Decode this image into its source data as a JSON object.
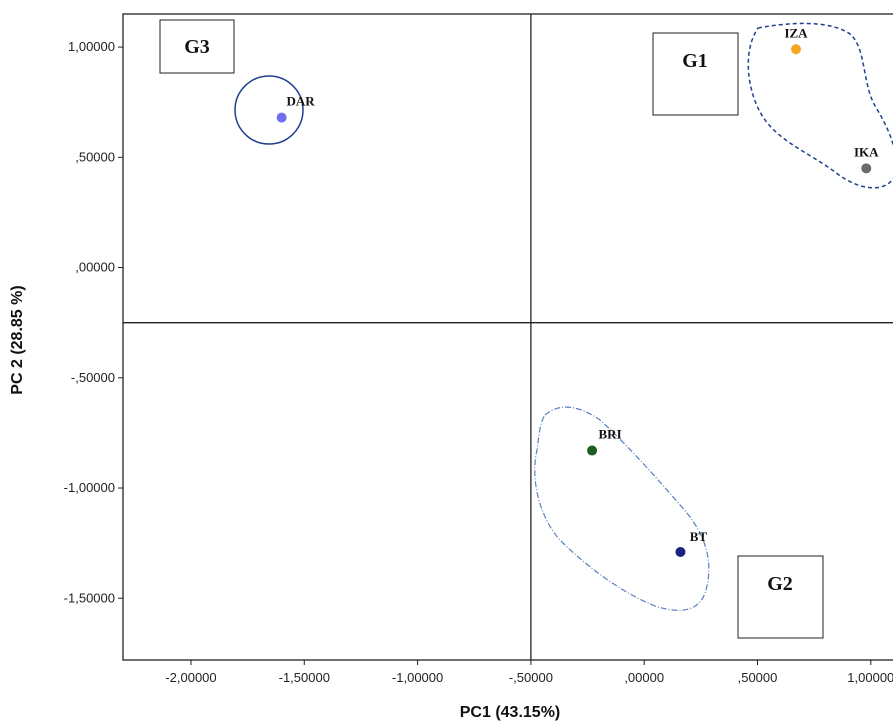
{
  "chart_data": {
    "type": "scatter",
    "xlabel": "PC1 (43.15%)",
    "ylabel": "PC 2 (28.85 %)",
    "xlim": [
      -2.3,
      1.12
    ],
    "ylim": [
      -1.78,
      1.15
    ],
    "x_ticks": [
      {
        "value": -2.0,
        "label": "-2,00000"
      },
      {
        "value": -1.5,
        "label": "-1,50000"
      },
      {
        "value": -1.0,
        "label": "-1,00000"
      },
      {
        "value": -0.5,
        "label": "-,50000"
      },
      {
        "value": 0.0,
        "label": ",00000"
      },
      {
        "value": 0.5,
        "label": ",50000"
      },
      {
        "value": 1.0,
        "label": "1,00000"
      }
    ],
    "y_ticks": [
      {
        "value": 1.0,
        "label": "1,00000"
      },
      {
        "value": 0.5,
        "label": ",50000"
      },
      {
        "value": 0.0,
        "label": ",00000"
      },
      {
        "value": -0.5,
        "label": "-,50000"
      },
      {
        "value": -1.0,
        "label": "-1,00000"
      },
      {
        "value": -1.5,
        "label": "-1,50000"
      }
    ],
    "reference_lines": {
      "x": -0.5,
      "y": -0.25
    },
    "points": [
      {
        "label": "IZA",
        "x": 0.67,
        "y": 0.99,
        "color": "#f5a623"
      },
      {
        "label": "IKA",
        "x": 0.98,
        "y": 0.45,
        "color": "#6b6b6b"
      },
      {
        "label": "DAR",
        "x": -1.6,
        "y": 0.68,
        "color": "#6f6ff0"
      },
      {
        "label": "BRI",
        "x": -0.23,
        "y": -0.83,
        "color": "#1b5e20"
      },
      {
        "label": "BT",
        "x": 0.16,
        "y": -1.29,
        "color": "#1a237e"
      }
    ],
    "groups": [
      "G1",
      "G2",
      "G3"
    ],
    "colors": {
      "axis": "#222222",
      "outline": "#1f3f8f"
    }
  }
}
